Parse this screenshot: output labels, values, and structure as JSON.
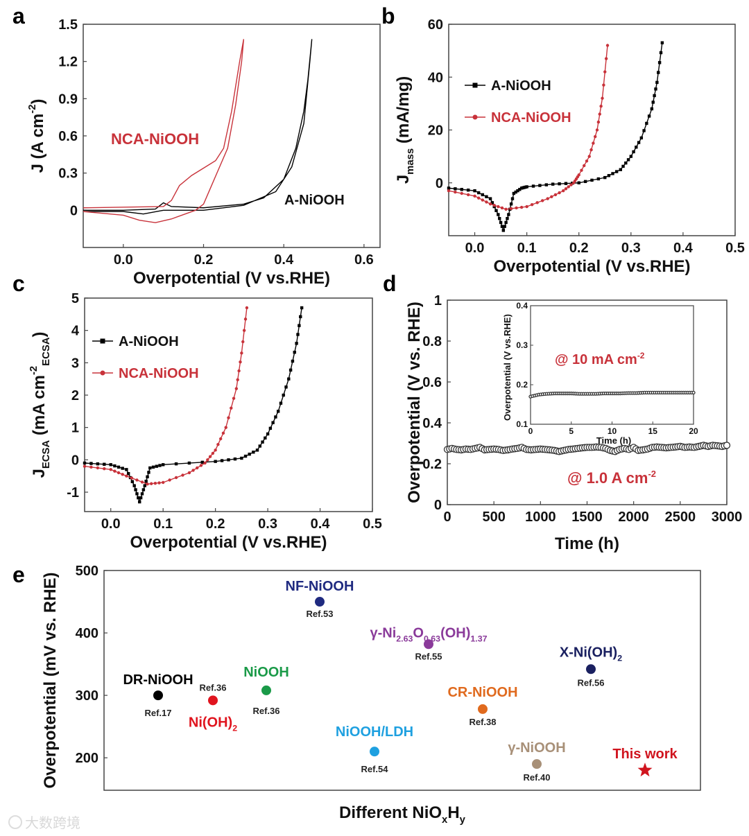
{
  "panel_labels": [
    "a",
    "b",
    "c",
    "d",
    "e"
  ],
  "watermark": "大数跨境",
  "chart_data": [
    {
      "type": "line",
      "panel": "a",
      "xlim": [
        -0.1,
        0.64
      ],
      "ylim": [
        -0.3,
        1.5
      ],
      "xticks": [
        "0.0",
        "0.2",
        "0.4",
        "0.6"
      ],
      "yticks": [
        "0",
        "0.3",
        "0.6",
        "0.9",
        "1.2",
        "1.5"
      ],
      "xlabel_parts": [
        {
          "t": "Overpotential (V vs.RHE)",
          "s": ""
        }
      ],
      "ylabel_parts": [
        {
          "t": "J (A cm",
          "s": ""
        },
        {
          "t": "-2",
          "s": "sup"
        },
        {
          "t": ")",
          "s": ""
        }
      ],
      "annotations": [
        "NCA-NiOOH",
        "A-NiOOH"
      ],
      "series": [
        {
          "name": "A-NiOOH",
          "color": "#000000",
          "x": [
            -0.1,
            0.0,
            0.08,
            0.1,
            0.12,
            0.2,
            0.3,
            0.35,
            0.4,
            0.43,
            0.45,
            0.46,
            0.47,
            0.465,
            0.45,
            0.42,
            0.38,
            0.3,
            0.2,
            0.1,
            0.05,
            0.0,
            -0.1
          ],
          "y": [
            0.0,
            0.0,
            0.01,
            0.06,
            0.03,
            0.02,
            0.05,
            0.1,
            0.25,
            0.5,
            0.8,
            1.05,
            1.38,
            1.2,
            0.7,
            0.35,
            0.15,
            0.04,
            0.0,
            0.0,
            -0.03,
            -0.01,
            -0.01
          ]
        },
        {
          "name": "NCA-NiOOH",
          "color": "#c8323a",
          "x": [
            -0.1,
            0.1,
            0.12,
            0.14,
            0.17,
            0.2,
            0.23,
            0.25,
            0.27,
            0.29,
            0.3,
            0.295,
            0.28,
            0.26,
            0.24,
            0.22,
            0.2,
            0.18,
            0.12,
            0.08,
            0.04,
            0.0,
            -0.1
          ],
          "y": [
            0.02,
            0.03,
            0.08,
            0.2,
            0.28,
            0.34,
            0.4,
            0.5,
            0.8,
            1.2,
            1.38,
            1.2,
            0.85,
            0.5,
            0.35,
            0.2,
            0.05,
            0.0,
            -0.07,
            -0.1,
            -0.08,
            -0.04,
            -0.01
          ]
        }
      ]
    },
    {
      "type": "line",
      "panel": "b",
      "xlim": [
        -0.05,
        0.5
      ],
      "ylim": [
        -20,
        60
      ],
      "xticks": [
        "0.0",
        "0.1",
        "0.2",
        "0.3",
        "0.4",
        "0.5"
      ],
      "yticks": [
        "0",
        "20",
        "40",
        "60"
      ],
      "xlabel_parts": [
        {
          "t": "Overpotential (V vs.RHE)",
          "s": ""
        }
      ],
      "ylabel_parts": [
        {
          "t": "J",
          "s": ""
        },
        {
          "t": "mass",
          "s": "sub"
        },
        {
          "t": " (mA/mg)",
          "s": ""
        }
      ],
      "legend": "upper-left",
      "series": [
        {
          "name": "A-NiOOH",
          "color": "#000000",
          "marker": "square",
          "x": [
            -0.05,
            0.0,
            0.03,
            0.045,
            0.055,
            0.065,
            0.075,
            0.09,
            0.1,
            0.15,
            0.2,
            0.25,
            0.28,
            0.3,
            0.32,
            0.34,
            0.35,
            0.36
          ],
          "y": [
            -2,
            -3,
            -6,
            -12,
            -18,
            -12,
            -4,
            -2,
            -1.5,
            -0.5,
            0,
            2,
            5,
            10,
            17,
            28,
            38,
            53
          ]
        },
        {
          "name": "NCA-NiOOH",
          "color": "#c8323a",
          "marker": "circle",
          "x": [
            -0.05,
            0.0,
            0.03,
            0.06,
            0.1,
            0.14,
            0.17,
            0.19,
            0.2,
            0.22,
            0.235,
            0.245,
            0.255
          ],
          "y": [
            -3,
            -5,
            -8,
            -10,
            -9,
            -6,
            -3,
            0,
            3,
            10,
            20,
            32,
            52
          ]
        }
      ]
    },
    {
      "type": "line",
      "panel": "c",
      "xlim": [
        -0.05,
        0.5
      ],
      "ylim": [
        -1.6,
        5
      ],
      "xticks": [
        "0.0",
        "0.1",
        "0.2",
        "0.3",
        "0.4",
        "0.5"
      ],
      "yticks": [
        "-1",
        "0",
        "1",
        "2",
        "3",
        "4",
        "5"
      ],
      "xlabel_parts": [
        {
          "t": "Overpotential (V vs.RHE)",
          "s": ""
        }
      ],
      "ylabel_parts": [
        {
          "t": "J",
          "s": ""
        },
        {
          "t": "ECSA",
          "s": "sub"
        },
        {
          "t": " (mA cm",
          "s": ""
        },
        {
          "t": "-2",
          "s": "sup"
        },
        {
          "t": "ECSA",
          "s": "sub"
        },
        {
          "t": ")",
          "s": ""
        }
      ],
      "legend": "upper-left",
      "series": [
        {
          "name": "A-NiOOH",
          "color": "#000000",
          "marker": "square",
          "x": [
            -0.05,
            0.0,
            0.03,
            0.045,
            0.055,
            0.065,
            0.075,
            0.1,
            0.2,
            0.25,
            0.28,
            0.3,
            0.32,
            0.34,
            0.355,
            0.365
          ],
          "y": [
            -0.1,
            -0.15,
            -0.3,
            -0.8,
            -1.3,
            -0.8,
            -0.25,
            -0.15,
            -0.05,
            0.05,
            0.3,
            0.8,
            1.5,
            2.5,
            3.6,
            4.7
          ]
        },
        {
          "name": "NCA-NiOOH",
          "color": "#c8323a",
          "marker": "circle",
          "x": [
            -0.05,
            0.0,
            0.03,
            0.07,
            0.1,
            0.15,
            0.18,
            0.2,
            0.22,
            0.24,
            0.25,
            0.26
          ],
          "y": [
            -0.2,
            -0.3,
            -0.5,
            -0.75,
            -0.7,
            -0.4,
            -0.1,
            0.3,
            1.0,
            2.2,
            3.3,
            4.7
          ]
        }
      ]
    },
    {
      "type": "scatter",
      "panel": "d",
      "xlim": [
        0,
        3000
      ],
      "ylim": [
        0,
        1
      ],
      "xticks": [
        "0",
        "500",
        "1000",
        "1500",
        "2000",
        "2500",
        "3000"
      ],
      "yticks": [
        "0",
        "0.2",
        "0.4",
        "0.6",
        "0.8",
        "1"
      ],
      "xlabel_parts": [
        {
          "t": "Time (h)",
          "s": ""
        }
      ],
      "ylabel_parts": [
        {
          "t": "Overpotential (V vs. RHE)",
          "s": ""
        }
      ],
      "annotations": [
        "@ 1.0 A cm",
        "-2"
      ],
      "series": [
        {
          "name": "@ 1.0 A cm-2",
          "color": "#333333",
          "marker": "open-circle",
          "x_start": 0,
          "x_step": 50,
          "y": [
            0.27,
            0.275,
            0.27,
            0.268,
            0.272,
            0.27,
            0.275,
            0.28,
            0.268,
            0.27,
            0.272,
            0.27,
            0.265,
            0.268,
            0.272,
            0.275,
            0.28,
            0.27,
            0.268,
            0.27,
            0.272,
            0.27,
            0.268,
            0.265,
            0.26,
            0.265,
            0.27,
            0.272,
            0.275,
            0.278,
            0.28,
            0.28,
            0.282,
            0.28,
            0.275,
            0.265,
            0.26,
            0.27,
            0.275,
            0.27,
            0.28,
            0.265,
            0.268,
            0.272,
            0.28,
            0.282,
            0.28,
            0.278,
            0.28,
            0.282,
            0.285,
            0.28,
            0.282,
            0.28,
            0.285,
            0.29,
            0.285,
            0.29,
            0.288,
            0.285,
            0.29
          ]
        }
      ],
      "inset": {
        "xlim": [
          0,
          20
        ],
        "ylim": [
          0.1,
          0.4
        ],
        "xticks": [
          "0",
          "5",
          "10",
          "15",
          "20"
        ],
        "yticks": [
          "0.1",
          "0.2",
          "0.3",
          "0.4"
        ],
        "xlabel": "Time (h)",
        "ylabel": "Overpotential (V vs.RHE)",
        "annotation": [
          "@ 10 mA cm",
          "-2"
        ],
        "x_start": 0,
        "x_step": 1,
        "y": [
          0.17,
          0.175,
          0.177,
          0.178,
          0.178,
          0.178,
          0.177,
          0.177,
          0.177,
          0.178,
          0.178,
          0.178,
          0.179,
          0.179,
          0.18,
          0.18,
          0.18,
          0.18,
          0.18,
          0.18,
          0.18
        ]
      }
    },
    {
      "type": "scatter",
      "panel": "e",
      "ylim": [
        148,
        500
      ],
      "yticks": [
        "200",
        "300",
        "400",
        "500"
      ],
      "xlabel_parts": [
        {
          "t": "Different NiO",
          "s": ""
        },
        {
          "t": "x",
          "s": "sub"
        },
        {
          "t": "H",
          "s": ""
        },
        {
          "t": "y",
          "s": "sub"
        }
      ],
      "ylabel_parts": [
        {
          "t": "Overpotential (mV vs. RHE)",
          "s": ""
        }
      ],
      "points": [
        {
          "name_parts": [
            {
              "t": "DR-NiOOH",
              "s": ""
            }
          ],
          "ref": "Ref.17",
          "value": 300,
          "color": "#000000",
          "marker": "circle"
        },
        {
          "name_parts": [
            {
              "t": "Ni(OH)",
              "s": ""
            },
            {
              "t": "2",
              "s": "sub"
            }
          ],
          "ref": "Ref.36",
          "value": 292,
          "color": "#e0141e",
          "marker": "circle"
        },
        {
          "name_parts": [
            {
              "t": "NiOOH",
              "s": ""
            }
          ],
          "ref": "Ref.36",
          "value": 308,
          "color": "#1a9a48",
          "marker": "circle"
        },
        {
          "name_parts": [
            {
              "t": "NF-NiOOH",
              "s": ""
            }
          ],
          "ref": "Ref.53",
          "value": 450,
          "color": "#1f2a80",
          "marker": "circle"
        },
        {
          "name_parts": [
            {
              "t": "NiOOH/LDH",
              "s": ""
            }
          ],
          "ref": "Ref.54",
          "value": 210,
          "color": "#1ea0e0",
          "marker": "circle"
        },
        {
          "name_parts": [
            {
              "t": "γ-Ni",
              "s": ""
            },
            {
              "t": "2.63",
              "s": "sub"
            },
            {
              "t": "O",
              "s": ""
            },
            {
              "t": "0.63",
              "s": "sub"
            },
            {
              "t": "(OH)",
              "s": ""
            },
            {
              "t": "1.37",
              "s": "sub"
            }
          ],
          "ref": "Ref.55",
          "value": 382,
          "color": "#8a3a9a",
          "marker": "circle"
        },
        {
          "name_parts": [
            {
              "t": "CR-NiOOH",
              "s": ""
            }
          ],
          "ref": "Ref.38",
          "value": 278,
          "color": "#e06a1e",
          "marker": "circle"
        },
        {
          "name_parts": [
            {
              "t": "γ-NiOOH",
              "s": ""
            }
          ],
          "ref": "Ref.40",
          "value": 190,
          "color": "#a89078",
          "marker": "circle"
        },
        {
          "name_parts": [
            {
              "t": "X-Ni(OH)",
              "s": ""
            },
            {
              "t": "2",
              "s": "sub"
            }
          ],
          "ref": "Ref.56",
          "value": 342,
          "color": "#1a2060",
          "marker": "circle"
        },
        {
          "name_parts": [
            {
              "t": "This work",
              "s": ""
            }
          ],
          "ref": "",
          "value": 180,
          "color": "#d0141e",
          "marker": "star"
        }
      ]
    }
  ]
}
